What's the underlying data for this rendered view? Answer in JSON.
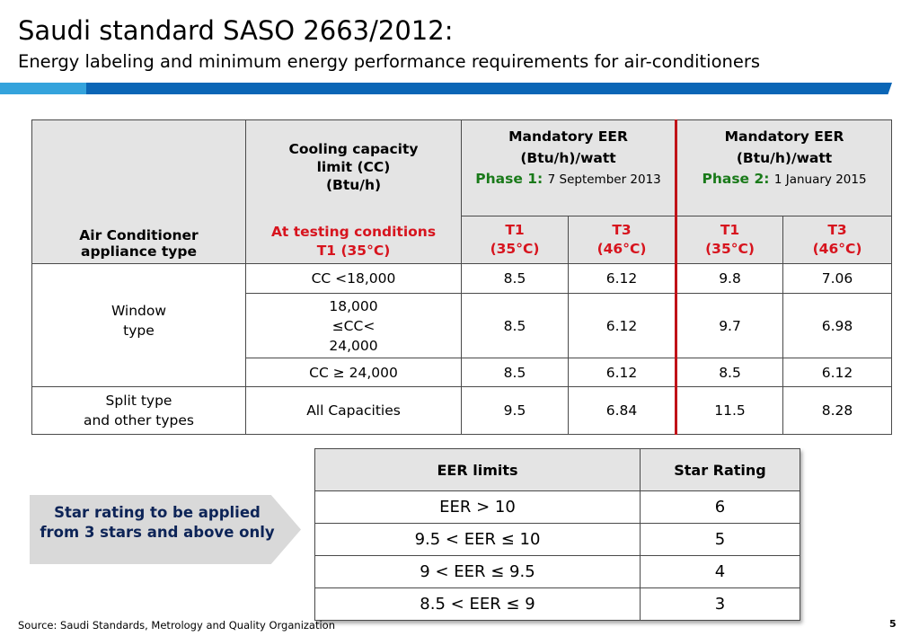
{
  "header": {
    "title": "Saudi standard SASO 2663/2012:",
    "subtitle": "Energy labeling and minimum energy performance requirements for air-conditioners"
  },
  "colors": {
    "bar_light": "#34a3dc",
    "bar_dark": "#0b66b6",
    "phase_green": "#1a7a1a",
    "accent_red": "#d7141e",
    "divider_red": "#c01318"
  },
  "main_table": {
    "col_type": "Air Conditioner\nappliance type",
    "col_capacity": {
      "line1": "Cooling capacity\nlimit (CC)\n(Btu/h)",
      "line2": "At testing conditions\nT1 (35°C)"
    },
    "group1": {
      "title": "Mandatory EER\n(Btu/h)/watt",
      "phase_label": "Phase 1:",
      "phase_date": "7 September 2013"
    },
    "group2": {
      "title": "Mandatory EER\n(Btu/h)/watt",
      "phase_label": "Phase 2:",
      "phase_date": "1 January 2015"
    },
    "sub_headers": [
      "T1\n(35°C)",
      "T3\n(46°C)",
      "T1\n(35°C)",
      "T3\n(46°C)"
    ],
    "window_label": "Window\ntype",
    "split_label": "Split type\nand other types",
    "rows": [
      {
        "capacity": "CC <18,000",
        "values": [
          "8.5",
          "6.12",
          "9.8",
          "7.06"
        ]
      },
      {
        "capacity": "18,000\n≤CC<\n24,000",
        "values": [
          "8.5",
          "6.12",
          "9.7",
          "6.98"
        ]
      },
      {
        "capacity": "CC ≥ 24,000",
        "values": [
          "8.5",
          "6.12",
          "8.5",
          "6.12"
        ]
      },
      {
        "capacity": "All Capacities",
        "values": [
          "9.5",
          "6.84",
          "11.5",
          "8.28"
        ]
      }
    ]
  },
  "callout": {
    "text": "Star rating to be applied from 3 stars and above only"
  },
  "star_table": {
    "headers": [
      "EER limits",
      "Star Rating"
    ],
    "rows": [
      {
        "limit": "EER > 10",
        "stars": "6"
      },
      {
        "limit": "9.5 < EER ≤ 10",
        "stars": "5"
      },
      {
        "limit": "9 < EER ≤ 9.5",
        "stars": "4"
      },
      {
        "limit": "8.5 < EER ≤ 9",
        "stars": "3"
      }
    ]
  },
  "footer": {
    "source": "Source: Saudi Standards, Metrology and Quality Organization",
    "page": "5"
  }
}
